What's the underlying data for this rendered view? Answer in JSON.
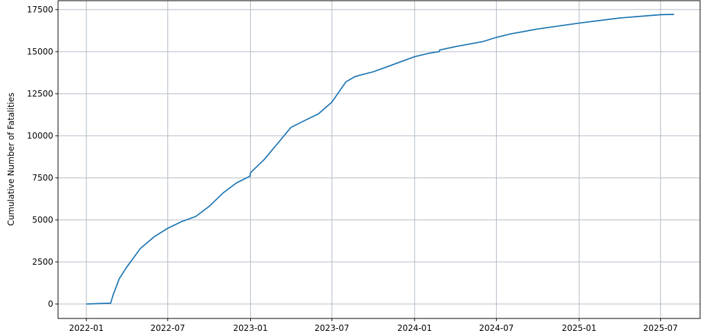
{
  "chart_data": {
    "type": "line",
    "title": "",
    "xlabel": "",
    "ylabel": "Cumulative Number of Fatalities",
    "grid": true,
    "line_color": "#1f77b4",
    "grid_color": "#b0b8c4",
    "xlim": [
      "2021-10-30",
      "2025-09-27"
    ],
    "ylim": [
      -860,
      18030
    ],
    "x_ticks": [
      "2022-01",
      "2022-07",
      "2023-01",
      "2023-07",
      "2024-01",
      "2024-07",
      "2025-01",
      "2025-07"
    ],
    "y_ticks": [
      0,
      2500,
      5000,
      7500,
      10000,
      12500,
      15000,
      17500
    ],
    "series": [
      {
        "x": [
          "2022-01-01",
          "2022-02-24",
          "2022-03-01",
          "2022-03-15",
          "2022-04-01",
          "2022-05-01",
          "2022-06-01",
          "2022-07-01",
          "2022-08-01",
          "2022-09-01",
          "2022-10-01",
          "2022-11-01",
          "2022-12-01",
          "2022-12-31",
          "2023-01-01",
          "2023-02-01",
          "2023-03-01",
          "2023-04-01",
          "2023-05-01",
          "2023-06-01",
          "2023-07-01",
          "2023-08-01",
          "2023-08-20",
          "2023-09-01",
          "2023-10-01",
          "2023-11-01",
          "2023-12-01",
          "2024-01-01",
          "2024-02-01",
          "2024-02-25",
          "2024-02-26",
          "2024-04-01",
          "2024-06-01",
          "2024-07-01",
          "2024-08-01",
          "2024-10-01",
          "2025-01-01",
          "2025-04-01",
          "2025-07-01",
          "2025-07-31"
        ],
        "y": [
          0,
          50,
          500,
          1500,
          2200,
          3300,
          4000,
          4500,
          4900,
          5200,
          5800,
          6600,
          7200,
          7600,
          7800,
          8600,
          9500,
          10500,
          10900,
          11300,
          12000,
          13200,
          13500,
          13600,
          13800,
          14100,
          14400,
          14700,
          14900,
          15000,
          15100,
          15300,
          15600,
          15850,
          16050,
          16350,
          16700,
          17000,
          17200,
          17220
        ]
      }
    ]
  }
}
